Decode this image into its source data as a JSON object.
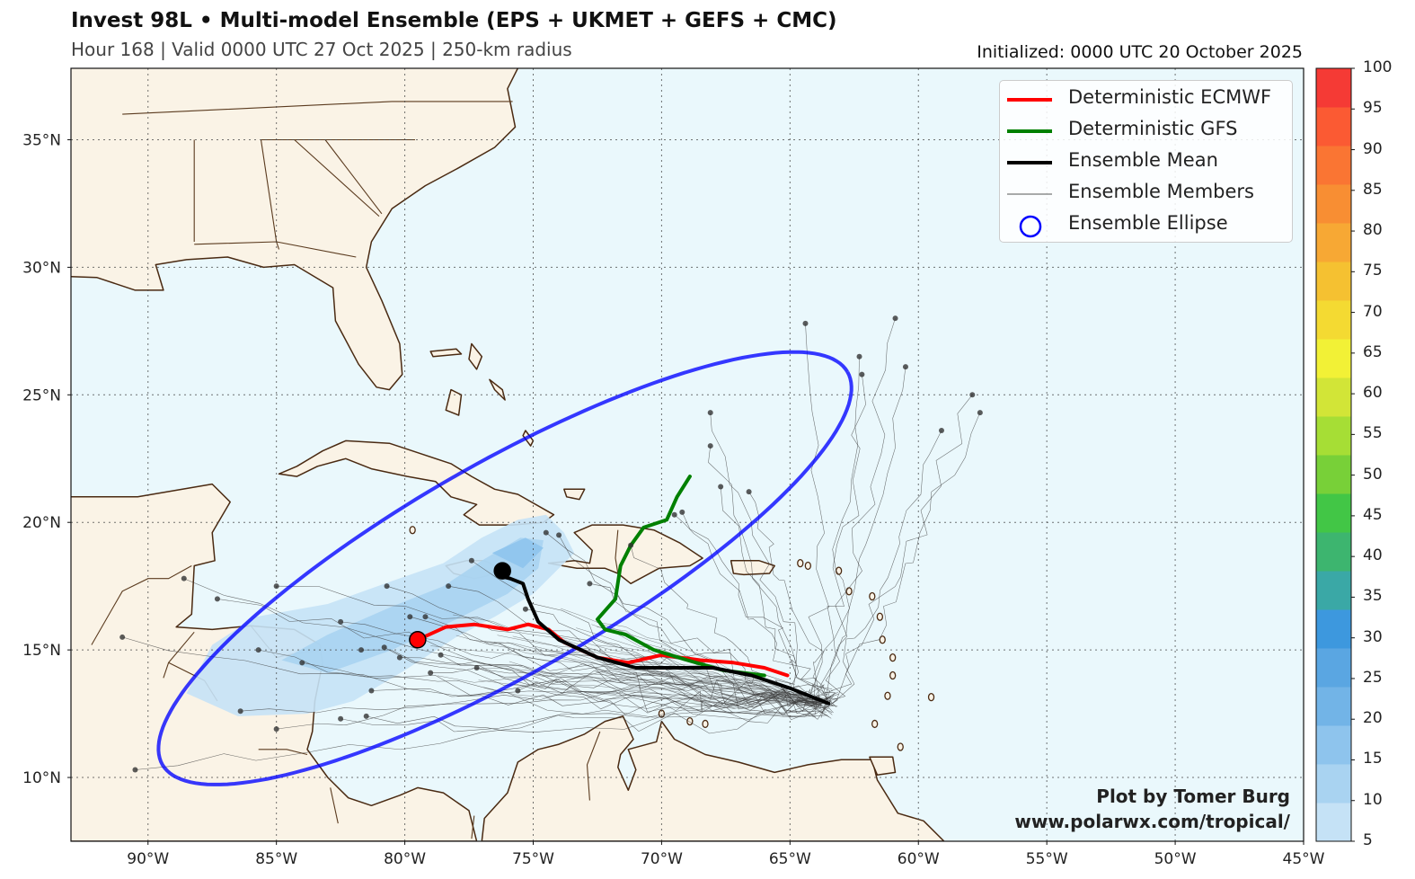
{
  "header": {
    "title": "Invest 98L • Multi-model Ensemble (EPS + UKMET + GEFS + CMC)",
    "subtitle": "Hour 168 | Valid 0000 UTC 27 Oct 2025 | 250-km radius",
    "initialized": "Initialized: 0000 UTC 20 October 2025"
  },
  "map": {
    "lon_range": [
      -93,
      -45
    ],
    "lat_range": [
      7.5,
      37.8
    ],
    "lon_ticks": [
      -90,
      -85,
      -80,
      -75,
      -70,
      -65,
      -60,
      -55,
      -50,
      -45
    ],
    "lat_ticks": [
      10,
      15,
      20,
      25,
      30,
      35
    ],
    "lon_tick_labels": [
      "90°W",
      "85°W",
      "80°W",
      "75°W",
      "70°W",
      "65°W",
      "60°W",
      "55°W",
      "50°W",
      "45°W"
    ],
    "lat_tick_labels": [
      "10°N",
      "15°N",
      "20°N",
      "25°N",
      "30°N",
      "35°N"
    ],
    "ocean_color": "#eaf8fc",
    "land_color": "#faf3e6",
    "coast_color": "#4a2a12"
  },
  "legend": {
    "items": [
      {
        "label": "Deterministic ECMWF",
        "color": "#ff0000",
        "symbol": "line-thick"
      },
      {
        "label": "Deterministic GFS",
        "color": "#008000",
        "symbol": "line-thick"
      },
      {
        "label": "Ensemble Mean",
        "color": "#000000",
        "symbol": "line-thick"
      },
      {
        "label": "Ensemble Members",
        "color": "#555555",
        "symbol": "line-thin"
      },
      {
        "label": "Ensemble Ellipse",
        "color": "#0000ff",
        "symbol": "circle"
      }
    ]
  },
  "tracks": {
    "ecmwf": {
      "color": "#ff0000",
      "lon": [
        -65.1,
        -66.0,
        -67.2,
        -68.5,
        -70.0,
        -71.3,
        -72.5,
        -73.8,
        -74.4,
        -75.2,
        -76.0,
        -77.3,
        -78.4,
        -79.5
      ],
      "lat": [
        14.0,
        14.3,
        14.5,
        14.6,
        14.8,
        14.5,
        14.7,
        15.3,
        15.8,
        16.0,
        15.8,
        16.0,
        15.9,
        15.4
      ]
    },
    "gfs": {
      "color": "#008000",
      "lon": [
        -66.0,
        -67.6,
        -69.0,
        -70.3,
        -71.4,
        -72.2,
        -72.5,
        -71.8,
        -71.6,
        -71.2,
        -70.7,
        -69.8,
        -69.4,
        -68.9
      ],
      "lat": [
        14.0,
        14.2,
        14.6,
        15.0,
        15.6,
        15.8,
        16.2,
        17.0,
        18.3,
        19.1,
        19.8,
        20.1,
        21.0,
        21.8
      ]
    },
    "mean": {
      "color": "#000000",
      "lon": [
        -63.5,
        -65.0,
        -66.5,
        -68.0,
        -69.5,
        -71.0,
        -72.5,
        -74.0,
        -74.8,
        -75.2,
        -75.4,
        -75.9,
        -76.3,
        -76.2
      ],
      "lat": [
        12.9,
        13.5,
        14.0,
        14.3,
        14.3,
        14.3,
        14.7,
        15.4,
        16.1,
        17.0,
        17.6,
        17.8,
        17.9,
        18.1
      ]
    },
    "start_points": [
      {
        "name": "ecmwf",
        "lon": -79.5,
        "lat": 15.4,
        "color": "#ff0000"
      },
      {
        "name": "mean",
        "lon": -76.2,
        "lat": 18.1,
        "color": "#000000"
      }
    ]
  },
  "ensemble_ellipse": {
    "color": "#0000ff",
    "center_lon": -76.1,
    "center_lat": 18.2,
    "semi_major_deg": 15.4,
    "semi_minor_deg": 4.1,
    "angle_deg": 30
  },
  "member_points": [
    {
      "lon": -90.5,
      "lat": 10.3
    },
    {
      "lon": -91.0,
      "lat": 15.5
    },
    {
      "lon": -88.6,
      "lat": 17.8
    },
    {
      "lon": -87.3,
      "lat": 17.0
    },
    {
      "lon": -85.0,
      "lat": 17.5
    },
    {
      "lon": -84.0,
      "lat": 14.5
    },
    {
      "lon": -85.7,
      "lat": 15.0
    },
    {
      "lon": -86.4,
      "lat": 12.6
    },
    {
      "lon": -85.0,
      "lat": 11.9
    },
    {
      "lon": -82.5,
      "lat": 12.3
    },
    {
      "lon": -81.5,
      "lat": 12.4
    },
    {
      "lon": -81.3,
      "lat": 13.4
    },
    {
      "lon": -81.7,
      "lat": 15.0
    },
    {
      "lon": -80.8,
      "lat": 15.1
    },
    {
      "lon": -80.2,
      "lat": 14.7
    },
    {
      "lon": -79.0,
      "lat": 14.1
    },
    {
      "lon": -78.6,
      "lat": 14.8
    },
    {
      "lon": -77.2,
      "lat": 14.3
    },
    {
      "lon": -75.6,
      "lat": 13.4
    },
    {
      "lon": -79.2,
      "lat": 16.3
    },
    {
      "lon": -80.7,
      "lat": 17.5
    },
    {
      "lon": -78.3,
      "lat": 17.5
    },
    {
      "lon": -77.4,
      "lat": 18.5
    },
    {
      "lon": -74.5,
      "lat": 19.6
    },
    {
      "lon": -74.0,
      "lat": 19.5
    },
    {
      "lon": -71.2,
      "lat": 19.1
    },
    {
      "lon": -69.5,
      "lat": 20.3
    },
    {
      "lon": -69.2,
      "lat": 20.4
    },
    {
      "lon": -67.7,
      "lat": 21.4
    },
    {
      "lon": -66.6,
      "lat": 21.2
    },
    {
      "lon": -68.1,
      "lat": 23.0
    },
    {
      "lon": -68.1,
      "lat": 24.3
    },
    {
      "lon": -64.4,
      "lat": 27.8
    },
    {
      "lon": -62.2,
      "lat": 25.8
    },
    {
      "lon": -62.3,
      "lat": 26.5
    },
    {
      "lon": -60.9,
      "lat": 28.0
    },
    {
      "lon": -60.5,
      "lat": 26.1
    },
    {
      "lon": -57.9,
      "lat": 25.0
    },
    {
      "lon": -57.6,
      "lat": 24.3
    },
    {
      "lon": -59.1,
      "lat": 23.6
    },
    {
      "lon": -72.8,
      "lat": 17.6
    },
    {
      "lon": -75.3,
      "lat": 16.6
    },
    {
      "lon": -79.8,
      "lat": 16.3
    },
    {
      "lon": -82.5,
      "lat": 16.1
    }
  ],
  "colorbar": {
    "ticks": [
      "5",
      "10",
      "15",
      "20",
      "25",
      "30",
      "35",
      "40",
      "45",
      "50",
      "55",
      "60",
      "65",
      "70",
      "75",
      "80",
      "85",
      "90",
      "95",
      "100"
    ],
    "colors": [
      "#c5e2f6",
      "#a9d3f1",
      "#8ec4ed",
      "#72b4e7",
      "#5aa6e2",
      "#3d98de",
      "#3aa8a6",
      "#3db56f",
      "#42c646",
      "#78d038",
      "#a6de35",
      "#d2e537",
      "#f2f136",
      "#f4da32",
      "#f5c131",
      "#f7a834",
      "#f88e33",
      "#fa7533",
      "#fb5a33",
      "#f53a35"
    ]
  },
  "credit": {
    "line1": "Plot by Tomer Burg",
    "line2": "www.polarwx.com/tropical/"
  }
}
